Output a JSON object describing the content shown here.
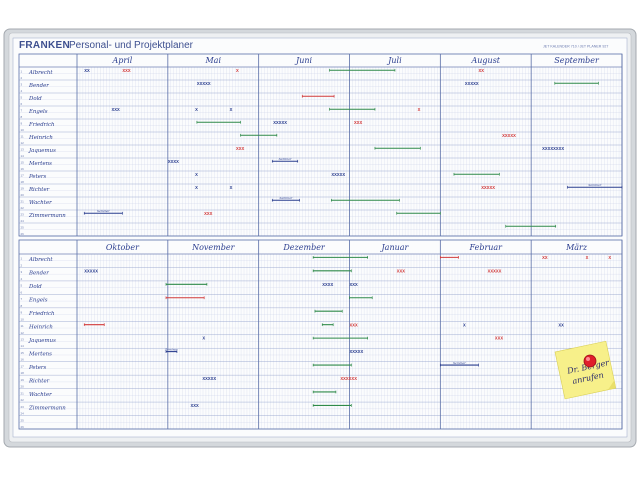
{
  "brand": "FRANKEN",
  "title": "Personal- und Projektplaner",
  "subtitle": "JET KALENDER 710 / JET PLANER 927",
  "colors": {
    "frame": "#c9cdd2",
    "frame_dark": "#9ea3a9",
    "board": "#fbfcfd",
    "grid_line": "#5a6ea8",
    "grid_fine": "#c7cfe6",
    "ink_blue": "#2b3e8f",
    "ink_red": "#d23a3a",
    "ink_green": "#2f8a4a",
    "magnet_red": "#e01e2b",
    "sticky_note": "#f7f08a"
  },
  "top_half": {
    "months": [
      "April",
      "Mai",
      "Juni",
      "Juli",
      "August",
      "September"
    ],
    "names": [
      "Albrecht",
      "Bender",
      "Dold",
      "Engels",
      "Friedrich",
      "Heinrich",
      "Jaquemus",
      "Mertens",
      "Peters",
      "Richter",
      "Wachter",
      "Zimmermann"
    ]
  },
  "bottom_half": {
    "months": [
      "Oktober",
      "November",
      "Dezember",
      "Januar",
      "Februar",
      "März"
    ],
    "names": [
      "Albrecht",
      "Bender",
      "Dold",
      "Engels",
      "Friedrich",
      "Heinrich",
      "Jaquemus",
      "Mertens",
      "Peters",
      "Richter",
      "Wachter",
      "Zimmermann"
    ]
  },
  "sticky_note": {
    "lines": [
      "Dr. Berger",
      "anrufen"
    ]
  },
  "entries_top": [
    {
      "row": 0,
      "col": 0,
      "pos": 0.08,
      "kind": "text",
      "color": "blue",
      "text": "XX"
    },
    {
      "row": 0,
      "col": 0,
      "pos": 0.5,
      "kind": "text",
      "color": "red",
      "text": "XXX"
    },
    {
      "row": 0,
      "col": 1,
      "pos": 0.75,
      "kind": "text",
      "color": "red",
      "text": "X"
    },
    {
      "row": 0,
      "col": 2,
      "pos": 0.78,
      "kind": "bar",
      "color": "green",
      "len": 0.72
    },
    {
      "row": 0,
      "col": 4,
      "pos": 0.42,
      "kind": "text",
      "color": "red",
      "text": "XX"
    },
    {
      "row": 1,
      "col": 1,
      "pos": 0.32,
      "kind": "text",
      "color": "blue",
      "text": "XXXXX"
    },
    {
      "row": 1,
      "col": 4,
      "pos": 0.27,
      "kind": "text",
      "color": "blue",
      "text": "XXXXX"
    },
    {
      "row": 1,
      "col": 5,
      "pos": 0.26,
      "kind": "bar",
      "color": "green",
      "len": 0.48
    },
    {
      "row": 2,
      "col": 2,
      "pos": 0.48,
      "kind": "bar",
      "color": "red",
      "len": 0.35
    },
    {
      "row": 3,
      "col": 0,
      "pos": 0.38,
      "kind": "text",
      "color": "blue",
      "text": "XXX"
    },
    {
      "row": 3,
      "col": 1,
      "pos": 0.3,
      "kind": "text",
      "color": "blue",
      "text": "X"
    },
    {
      "row": 3,
      "col": 1,
      "pos": 0.68,
      "kind": "text",
      "color": "blue",
      "text": "X"
    },
    {
      "row": 3,
      "col": 2,
      "pos": 0.78,
      "kind": "bar",
      "color": "green",
      "len": 0.5
    },
    {
      "row": 3,
      "col": 3,
      "pos": 0.75,
      "kind": "text",
      "color": "red",
      "text": "X"
    },
    {
      "row": 4,
      "col": 1,
      "pos": 0.32,
      "kind": "bar",
      "color": "green",
      "len": 0.48
    },
    {
      "row": 4,
      "col": 2,
      "pos": 0.16,
      "kind": "text",
      "color": "blue",
      "text": "XXXXX"
    },
    {
      "row": 4,
      "col": 3,
      "pos": 0.05,
      "kind": "text",
      "color": "red",
      "text": "XXX"
    },
    {
      "row": 5,
      "col": 1,
      "pos": 0.8,
      "kind": "bar",
      "color": "green",
      "len": 0.4
    },
    {
      "row": 5,
      "col": 4,
      "pos": 0.68,
      "kind": "text",
      "color": "red",
      "text": "XXXXX"
    },
    {
      "row": 6,
      "col": 1,
      "pos": 0.75,
      "kind": "text",
      "color": "red",
      "text": "XXX"
    },
    {
      "row": 6,
      "col": 3,
      "pos": 0.28,
      "kind": "bar",
      "color": "green",
      "len": 0.5
    },
    {
      "row": 6,
      "col": 5,
      "pos": 0.12,
      "kind": "text",
      "color": "blue",
      "text": "XXXXXXXX"
    },
    {
      "row": 7,
      "col": 1,
      "pos": 0.0,
      "kind": "text",
      "color": "blue",
      "text": "XXXX"
    },
    {
      "row": 7,
      "col": 2,
      "pos": 0.15,
      "kind": "bar",
      "color": "blue",
      "len": 0.28,
      "label": "Seminar"
    },
    {
      "row": 8,
      "col": 1,
      "pos": 0.3,
      "kind": "text",
      "color": "blue",
      "text": "X"
    },
    {
      "row": 8,
      "col": 2,
      "pos": 0.8,
      "kind": "text",
      "color": "blue",
      "text": "XXXXX"
    },
    {
      "row": 8,
      "col": 4,
      "pos": 0.15,
      "kind": "bar",
      "color": "green",
      "len": 0.5
    },
    {
      "row": 9,
      "col": 1,
      "pos": 0.3,
      "kind": "text",
      "color": "blue",
      "text": "X"
    },
    {
      "row": 9,
      "col": 1,
      "pos": 0.68,
      "kind": "text",
      "color": "blue",
      "text": "X"
    },
    {
      "row": 9,
      "col": 4,
      "pos": 0.45,
      "kind": "text",
      "color": "red",
      "text": "XXXXX"
    },
    {
      "row": 9,
      "col": 5,
      "pos": 0.4,
      "kind": "bar",
      "color": "blue",
      "len": 0.6,
      "label": "Seminar"
    },
    {
      "row": 10,
      "col": 2,
      "pos": 0.15,
      "kind": "bar",
      "color": "blue",
      "len": 0.3,
      "label": "Seminar"
    },
    {
      "row": 10,
      "col": 2,
      "pos": 0.8,
      "kind": "bar",
      "color": "green",
      "len": 0.75
    },
    {
      "row": 11,
      "col": 0,
      "pos": 0.08,
      "kind": "bar",
      "color": "blue",
      "len": 0.42,
      "label": "Seminar"
    },
    {
      "row": 11,
      "col": 1,
      "pos": 0.4,
      "kind": "text",
      "color": "red",
      "text": "XXX"
    },
    {
      "row": 11,
      "col": 3,
      "pos": 0.52,
      "kind": "bar",
      "color": "green",
      "len": 0.48
    },
    {
      "row": 12,
      "col": 4,
      "pos": 0.72,
      "kind": "bar",
      "color": "green",
      "len": 0.55
    }
  ],
  "entries_bottom": [
    {
      "row": 0,
      "col": 2,
      "pos": 0.6,
      "kind": "bar",
      "color": "green",
      "len": 0.6
    },
    {
      "row": 0,
      "col": 4,
      "pos": 0.0,
      "kind": "bar",
      "color": "red",
      "len": 0.2
    },
    {
      "row": 0,
      "col": 5,
      "pos": 0.12,
      "kind": "text",
      "color": "red",
      "text": "XX"
    },
    {
      "row": 0,
      "col": 5,
      "pos": 0.6,
      "kind": "text",
      "color": "red",
      "text": "X"
    },
    {
      "row": 0,
      "col": 5,
      "pos": 0.85,
      "kind": "text",
      "color": "red",
      "text": "X"
    },
    {
      "row": 1,
      "col": 0,
      "pos": 0.08,
      "kind": "text",
      "color": "blue",
      "text": "XXXXX"
    },
    {
      "row": 1,
      "col": 2,
      "pos": 0.6,
      "kind": "bar",
      "color": "green",
      "len": 0.42
    },
    {
      "row": 1,
      "col": 3,
      "pos": 0.52,
      "kind": "text",
      "color": "red",
      "text": "XXX"
    },
    {
      "row": 1,
      "col": 4,
      "pos": 0.52,
      "kind": "text",
      "color": "red",
      "text": "XXXXX"
    },
    {
      "row": 2,
      "col": 0,
      "pos": 0.98,
      "kind": "bar",
      "color": "green",
      "len": 0.45
    },
    {
      "row": 2,
      "col": 2,
      "pos": 0.7,
      "kind": "text",
      "color": "blue",
      "text": "XXXX"
    },
    {
      "row": 2,
      "col": 3,
      "pos": 0.0,
      "kind": "text",
      "color": "blue",
      "text": "XXX"
    },
    {
      "row": 3,
      "col": 0,
      "pos": 0.98,
      "kind": "bar",
      "color": "red",
      "len": 0.42
    },
    {
      "row": 3,
      "col": 3,
      "pos": 0.0,
      "kind": "bar",
      "color": "green",
      "len": 0.25
    },
    {
      "row": 4,
      "col": 2,
      "pos": 0.62,
      "kind": "bar",
      "color": "green",
      "len": 0.3
    },
    {
      "row": 5,
      "col": 0,
      "pos": 0.08,
      "kind": "bar",
      "color": "red",
      "len": 0.22
    },
    {
      "row": 5,
      "col": 2,
      "pos": 0.7,
      "kind": "bar",
      "color": "green",
      "len": 0.12
    },
    {
      "row": 5,
      "col": 3,
      "pos": 0.0,
      "kind": "text",
      "color": "red",
      "text": "XXX"
    },
    {
      "row": 5,
      "col": 4,
      "pos": 0.25,
      "kind": "text",
      "color": "blue",
      "text": "X"
    },
    {
      "row": 5,
      "col": 5,
      "pos": 0.3,
      "kind": "text",
      "color": "blue",
      "text": "XX"
    },
    {
      "row": 6,
      "col": 1,
      "pos": 0.38,
      "kind": "text",
      "color": "blue",
      "text": "X"
    },
    {
      "row": 6,
      "col": 2,
      "pos": 0.6,
      "kind": "bar",
      "color": "green",
      "len": 0.6
    },
    {
      "row": 6,
      "col": 4,
      "pos": 0.6,
      "kind": "text",
      "color": "red",
      "text": "XXX"
    },
    {
      "row": 7,
      "col": 0,
      "pos": 0.98,
      "kind": "bar",
      "color": "blue",
      "len": 0.12,
      "label": "Seminar"
    },
    {
      "row": 7,
      "col": 3,
      "pos": 0.0,
      "kind": "text",
      "color": "blue",
      "text": "XXXXX"
    },
    {
      "row": 8,
      "col": 2,
      "pos": 0.6,
      "kind": "bar",
      "color": "green",
      "len": 0.42
    },
    {
      "row": 8,
      "col": 4,
      "pos": 0.0,
      "kind": "bar",
      "color": "blue",
      "len": 0.42,
      "label": "Seminar"
    },
    {
      "row": 9,
      "col": 1,
      "pos": 0.38,
      "kind": "text",
      "color": "blue",
      "text": "XXXXX"
    },
    {
      "row": 9,
      "col": 2,
      "pos": 0.9,
      "kind": "text",
      "color": "red",
      "text": "XXXXXX"
    },
    {
      "row": 10,
      "col": 2,
      "pos": 0.6,
      "kind": "bar",
      "color": "green",
      "len": 0.25
    },
    {
      "row": 11,
      "col": 1,
      "pos": 0.25,
      "kind": "text",
      "color": "blue",
      "text": "XXX"
    },
    {
      "row": 11,
      "col": 2,
      "pos": 0.6,
      "kind": "bar",
      "color": "green",
      "len": 0.42
    }
  ]
}
